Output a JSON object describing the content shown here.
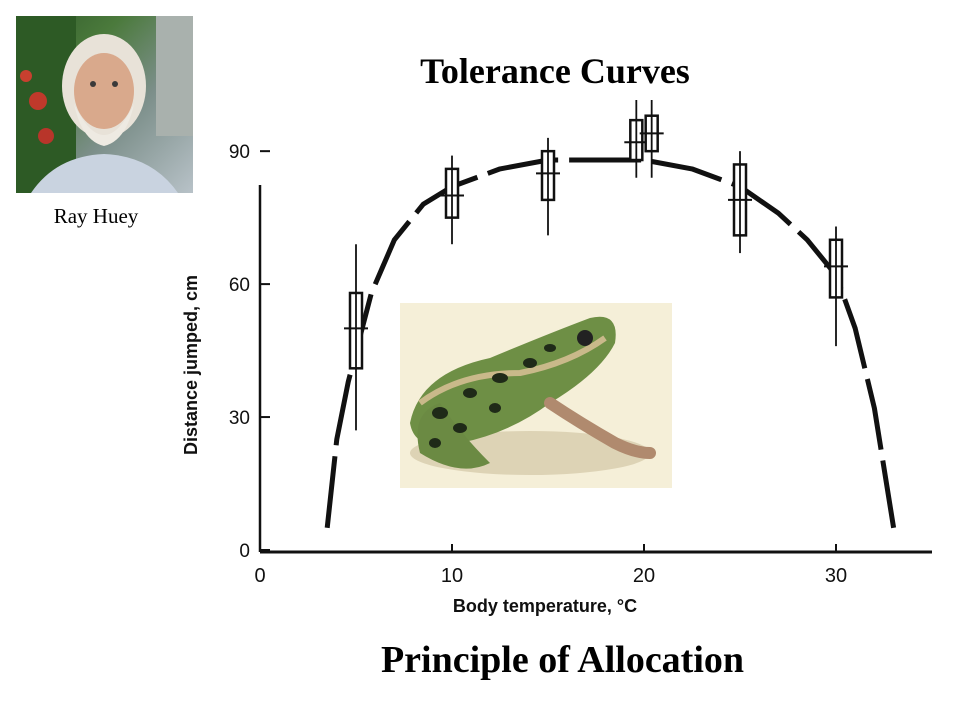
{
  "photo": {
    "caption": "Ray Huey"
  },
  "title": "Tolerance Curves",
  "subtitle": "Principle of Allocation",
  "chart_data": {
    "type": "line",
    "xlabel": "Body temperature, °C",
    "ylabel": "Distance jumped, cm",
    "xlim": [
      0,
      35
    ],
    "ylim": [
      0,
      95
    ],
    "x_ticks": [
      0,
      10,
      20,
      30
    ],
    "y_ticks": [
      0,
      30,
      60,
      90
    ],
    "grid": false,
    "curve": [
      {
        "x": 3.5,
        "y": 5
      },
      {
        "x": 4,
        "y": 25
      },
      {
        "x": 4.6,
        "y": 38
      },
      {
        "x": 5.8,
        "y": 58
      },
      {
        "x": 7,
        "y": 70
      },
      {
        "x": 8.5,
        "y": 78
      },
      {
        "x": 10,
        "y": 82
      },
      {
        "x": 12.5,
        "y": 86
      },
      {
        "x": 15,
        "y": 88
      },
      {
        "x": 17.5,
        "y": 88
      },
      {
        "x": 20,
        "y": 88
      },
      {
        "x": 22.5,
        "y": 86
      },
      {
        "x": 25,
        "y": 82
      },
      {
        "x": 27,
        "y": 76
      },
      {
        "x": 28.5,
        "y": 70
      },
      {
        "x": 30,
        "y": 62
      },
      {
        "x": 31,
        "y": 50
      },
      {
        "x": 32,
        "y": 32
      },
      {
        "x": 33,
        "y": 5
      }
    ],
    "boxes": [
      {
        "x": 5,
        "median": 50,
        "q1": 41,
        "q3": 58,
        "min": 27,
        "max": 69
      },
      {
        "x": 10,
        "median": 80,
        "q1": 75,
        "q3": 86,
        "min": 69,
        "max": 89
      },
      {
        "x": 15,
        "median": 85,
        "q1": 79,
        "q3": 90,
        "min": 71,
        "max": 93
      },
      {
        "x": 19.6,
        "median": 92,
        "q1": 88,
        "q3": 97,
        "min": 84,
        "max": 103
      },
      {
        "x": 20.4,
        "median": 94,
        "q1": 90,
        "q3": 98,
        "min": 84,
        "max": 107
      },
      {
        "x": 25,
        "median": 79,
        "q1": 71,
        "q3": 87,
        "min": 67,
        "max": 90
      },
      {
        "x": 30,
        "median": 64,
        "q1": 57,
        "q3": 70,
        "min": 46,
        "max": 73
      }
    ]
  }
}
